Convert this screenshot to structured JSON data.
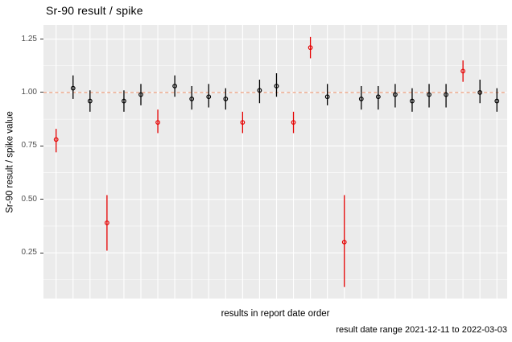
{
  "chart_data": {
    "type": "pointrange",
    "title": "Sr-90 result / spike",
    "xlabel": "results in report date order",
    "ylabel": "Sr-90 result / spike value",
    "caption": "result date range 2021-12-11 to 2022-03-03",
    "ytick_labels": [
      "0.25",
      "0.50",
      "0.75",
      "1.00",
      "1.25"
    ],
    "ytick_values": [
      0.25,
      0.5,
      0.75,
      1.0,
      1.25
    ],
    "yminor_values": [
      0.125,
      0.375,
      0.625,
      0.875,
      1.125
    ],
    "ylim": [
      0.036,
      1.316
    ],
    "grid": true,
    "legend": "none",
    "reference_line": {
      "y": 1.0,
      "linetype": "dashed",
      "color": "#ee9672"
    },
    "colors": {
      "point_normal": "#000000",
      "point_flagged": "#e60000",
      "panel_bg": "#ebebeb",
      "gridline": "#ffffff",
      "tick_label": "#4d4d4d",
      "tick_mark": "#333333"
    },
    "points": [
      {
        "x": 1,
        "y": 0.78,
        "ymin": 0.72,
        "ymax": 0.83,
        "color": "red"
      },
      {
        "x": 2,
        "y": 1.02,
        "ymin": 0.97,
        "ymax": 1.08,
        "color": "black"
      },
      {
        "x": 3,
        "y": 0.96,
        "ymin": 0.91,
        "ymax": 1.01,
        "color": "black"
      },
      {
        "x": 4,
        "y": 0.39,
        "ymin": 0.26,
        "ymax": 0.52,
        "color": "red"
      },
      {
        "x": 5,
        "y": 0.96,
        "ymin": 0.91,
        "ymax": 1.01,
        "color": "black"
      },
      {
        "x": 6,
        "y": 0.99,
        "ymin": 0.94,
        "ymax": 1.04,
        "color": "black"
      },
      {
        "x": 7,
        "y": 0.86,
        "ymin": 0.81,
        "ymax": 0.92,
        "color": "red"
      },
      {
        "x": 8,
        "y": 1.03,
        "ymin": 0.98,
        "ymax": 1.08,
        "color": "black"
      },
      {
        "x": 9,
        "y": 0.97,
        "ymin": 0.92,
        "ymax": 1.03,
        "color": "black"
      },
      {
        "x": 10,
        "y": 0.98,
        "ymin": 0.93,
        "ymax": 1.04,
        "color": "black"
      },
      {
        "x": 11,
        "y": 0.97,
        "ymin": 0.92,
        "ymax": 1.02,
        "color": "black"
      },
      {
        "x": 12,
        "y": 0.86,
        "ymin": 0.81,
        "ymax": 0.91,
        "color": "red"
      },
      {
        "x": 13,
        "y": 1.01,
        "ymin": 0.95,
        "ymax": 1.06,
        "color": "black"
      },
      {
        "x": 14,
        "y": 1.03,
        "ymin": 0.98,
        "ymax": 1.09,
        "color": "black"
      },
      {
        "x": 15,
        "y": 0.86,
        "ymin": 0.81,
        "ymax": 0.91,
        "color": "red"
      },
      {
        "x": 16,
        "y": 1.21,
        "ymin": 1.16,
        "ymax": 1.26,
        "color": "red"
      },
      {
        "x": 17,
        "y": 0.98,
        "ymin": 0.94,
        "ymax": 1.04,
        "color": "black"
      },
      {
        "x": 18,
        "y": 0.3,
        "ymin": 0.09,
        "ymax": 0.52,
        "color": "red"
      },
      {
        "x": 19,
        "y": 0.97,
        "ymin": 0.92,
        "ymax": 1.03,
        "color": "black"
      },
      {
        "x": 20,
        "y": 0.98,
        "ymin": 0.92,
        "ymax": 1.03,
        "color": "black"
      },
      {
        "x": 21,
        "y": 0.99,
        "ymin": 0.93,
        "ymax": 1.04,
        "color": "black"
      },
      {
        "x": 22,
        "y": 0.96,
        "ymin": 0.91,
        "ymax": 1.02,
        "color": "black"
      },
      {
        "x": 23,
        "y": 0.99,
        "ymin": 0.93,
        "ymax": 1.04,
        "color": "black"
      },
      {
        "x": 24,
        "y": 0.99,
        "ymin": 0.93,
        "ymax": 1.04,
        "color": "black"
      },
      {
        "x": 25,
        "y": 1.1,
        "ymin": 1.05,
        "ymax": 1.15,
        "color": "red"
      },
      {
        "x": 26,
        "y": 1.0,
        "ymin": 0.95,
        "ymax": 1.06,
        "color": "black"
      },
      {
        "x": 27,
        "y": 0.96,
        "ymin": 0.91,
        "ymax": 1.02,
        "color": "black"
      }
    ]
  }
}
